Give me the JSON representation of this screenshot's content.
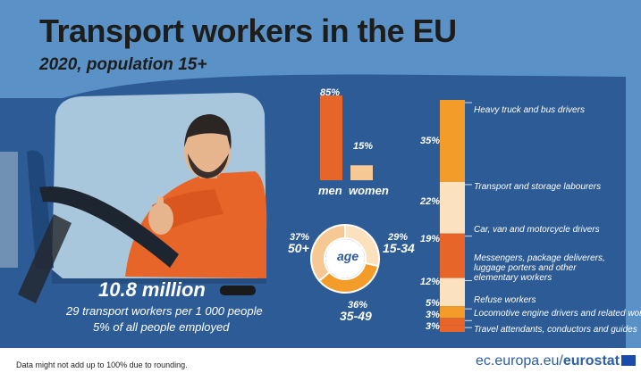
{
  "header": {
    "title": "Transport workers in the EU",
    "subtitle": "2020, population 15+"
  },
  "summary": {
    "total": "10.8 million",
    "per_thousand": "29 transport workers per 1 000 people",
    "share_employed": "5% of all people employed"
  },
  "footer": {
    "note": "Data might not add up to 100% due to rounding.",
    "source_prefix": "ec.europa.eu/",
    "source_brand": "eurostat"
  },
  "colors": {
    "background_sky": "#5a92c8",
    "truck_blue": "#2c5b95",
    "orange_dark": "#e8652a",
    "orange_mid": "#f39c2a",
    "peach": "#f6c994",
    "cream": "#fbe1bd"
  },
  "icons": [
    "driver-illustration",
    "truck-illustration",
    "eu-flag-icon"
  ],
  "chart_data": [
    {
      "type": "bar",
      "categories": [
        "men",
        "women"
      ],
      "values": [
        85,
        15
      ],
      "labels": [
        "85%",
        "15%"
      ],
      "ylim": [
        0,
        100
      ],
      "colors": [
        "#e8652a",
        "#f6c994"
      ]
    },
    {
      "type": "pie",
      "center_label": "age",
      "categories": [
        "15-34",
        "35-49",
        "50+"
      ],
      "values": [
        29,
        36,
        37
      ],
      "labels": [
        "29%",
        "36%",
        "37%"
      ],
      "colors": [
        "#fbe1bd",
        "#f39c2a",
        "#f6c994"
      ]
    },
    {
      "type": "bar",
      "stacked": true,
      "categories": [
        "Heavy truck and bus drivers",
        "Transport and storage labourers",
        "Car, van and motorcycle drivers",
        "Messengers, package deliverers, luggage porters and other elementary workers",
        "Refuse workers",
        "Locomotive engine drivers and related workers",
        "Travel attendants, conductors and guides"
      ],
      "values": [
        35,
        22,
        19,
        12,
        5,
        3,
        3
      ],
      "labels": [
        "35%",
        "22%",
        "19%",
        "12%",
        "5%",
        "3%",
        "3%"
      ],
      "colors": [
        "#f39c2a",
        "#fbe1bd",
        "#e8652a",
        "#fbe1bd",
        "#f39c2a",
        "#e8652a",
        "#e8652a"
      ]
    }
  ]
}
